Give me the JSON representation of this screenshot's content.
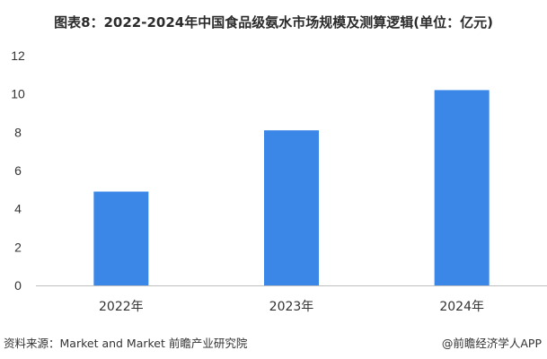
{
  "chart_data": {
    "type": "bar",
    "title": "图表8：2022-2024年中国食品级氨水市场规模及测算逻辑(单位：亿元)",
    "categories": [
      "2022年",
      "2023年",
      "2024年"
    ],
    "values": [
      4.9,
      8.1,
      10.2
    ],
    "ylim": [
      0,
      12
    ],
    "yticks": [
      0,
      2,
      4,
      6,
      8,
      10,
      12
    ],
    "xlabel": "",
    "ylabel": "",
    "grid": false,
    "bar_color": "#3a87e8",
    "axis_color": "#bfbfbf"
  },
  "footer": {
    "source": "资料来源：Market and Market 前瞻产业研究院",
    "brand": "@前瞻经济学人APP"
  }
}
